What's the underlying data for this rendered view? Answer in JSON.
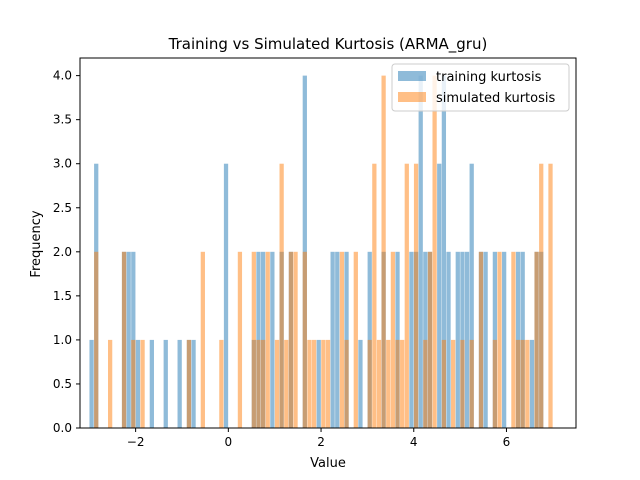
{
  "chart_data": {
    "type": "bar",
    "title": "Training vs Simulated Kurtosis (ARMA_gru)",
    "xlabel": "Value",
    "ylabel": "Frequency",
    "xlim": [
      -3.2,
      7.5
    ],
    "ylim": [
      0,
      4.2
    ],
    "xticks": [
      -2,
      0,
      2,
      4,
      6
    ],
    "xtick_labels": [
      "−2",
      "0",
      "2",
      "4",
      "6"
    ],
    "yticks": [
      0,
      0.5,
      1,
      1.5,
      2,
      2.5,
      3,
      3.5,
      4
    ],
    "ytick_labels": [
      "0.0",
      "0.5",
      "1.0",
      "1.5",
      "2.0",
      "2.5",
      "3.0",
      "3.5",
      "4.0"
    ],
    "bin_width": 0.1,
    "grid": false,
    "legend_position": "top-right",
    "series": [
      {
        "name": "training kurtosis",
        "color": "#1f77b4",
        "opacity": 0.5,
        "bins": [
          [
            -2.95,
            1
          ],
          [
            -2.85,
            3
          ],
          [
            -2.25,
            2
          ],
          [
            -2.15,
            2
          ],
          [
            -2.05,
            2
          ],
          [
            -1.95,
            1
          ],
          [
            -1.65,
            1
          ],
          [
            -1.35,
            1
          ],
          [
            -1.05,
            1
          ],
          [
            -0.85,
            1
          ],
          [
            -0.75,
            1
          ],
          [
            -0.05,
            3
          ],
          [
            0.55,
            1
          ],
          [
            0.65,
            2
          ],
          [
            0.75,
            2
          ],
          [
            0.95,
            2
          ],
          [
            1.15,
            2
          ],
          [
            1.35,
            2
          ],
          [
            1.65,
            4
          ],
          [
            1.95,
            1
          ],
          [
            2.25,
            2
          ],
          [
            2.35,
            2
          ],
          [
            2.55,
            2
          ],
          [
            2.85,
            1
          ],
          [
            3.05,
            2
          ],
          [
            3.35,
            2
          ],
          [
            3.65,
            2
          ],
          [
            3.95,
            2
          ],
          [
            4.05,
            2
          ],
          [
            4.15,
            4
          ],
          [
            4.25,
            2
          ],
          [
            4.35,
            2
          ],
          [
            4.55,
            3
          ],
          [
            4.65,
            4
          ],
          [
            4.75,
            2
          ],
          [
            4.95,
            2
          ],
          [
            5.05,
            2
          ],
          [
            5.15,
            2
          ],
          [
            5.25,
            3
          ],
          [
            5.45,
            2
          ],
          [
            5.55,
            2
          ],
          [
            5.75,
            2
          ],
          [
            5.95,
            2
          ],
          [
            6.25,
            2
          ],
          [
            6.35,
            2
          ],
          [
            6.55,
            1
          ],
          [
            6.65,
            2
          ],
          [
            6.75,
            2
          ]
        ]
      },
      {
        "name": "simulated kurtosis",
        "color": "#ff7f0e",
        "opacity": 0.5,
        "bins": [
          [
            -2.85,
            2
          ],
          [
            -2.55,
            1
          ],
          [
            -2.25,
            2
          ],
          [
            -2.05,
            1
          ],
          [
            -1.85,
            1
          ],
          [
            -0.85,
            1
          ],
          [
            -0.55,
            2
          ],
          [
            -0.15,
            1
          ],
          [
            0.25,
            2
          ],
          [
            0.55,
            2
          ],
          [
            0.65,
            1
          ],
          [
            0.75,
            1
          ],
          [
            0.85,
            2
          ],
          [
            1.05,
            1
          ],
          [
            1.15,
            3
          ],
          [
            1.25,
            1
          ],
          [
            1.35,
            2
          ],
          [
            1.45,
            2
          ],
          [
            1.65,
            2
          ],
          [
            1.75,
            1
          ],
          [
            1.85,
            1
          ],
          [
            2.05,
            1
          ],
          [
            2.15,
            1
          ],
          [
            2.45,
            2
          ],
          [
            2.55,
            1
          ],
          [
            2.75,
            2
          ],
          [
            3.05,
            1
          ],
          [
            3.15,
            3
          ],
          [
            3.25,
            1
          ],
          [
            3.35,
            4
          ],
          [
            3.45,
            1
          ],
          [
            3.55,
            2
          ],
          [
            3.65,
            1
          ],
          [
            3.75,
            1
          ],
          [
            3.85,
            3
          ],
          [
            4.05,
            3
          ],
          [
            4.25,
            1
          ],
          [
            4.35,
            2
          ],
          [
            4.45,
            4
          ],
          [
            4.65,
            1
          ],
          [
            4.85,
            1
          ],
          [
            5.05,
            1
          ],
          [
            5.25,
            1
          ],
          [
            5.45,
            2
          ],
          [
            5.75,
            1
          ],
          [
            5.85,
            2
          ],
          [
            6.15,
            2
          ],
          [
            6.25,
            1
          ],
          [
            6.35,
            1
          ],
          [
            6.45,
            1
          ],
          [
            6.65,
            2
          ],
          [
            6.75,
            3
          ],
          [
            6.95,
            3
          ]
        ]
      }
    ]
  }
}
